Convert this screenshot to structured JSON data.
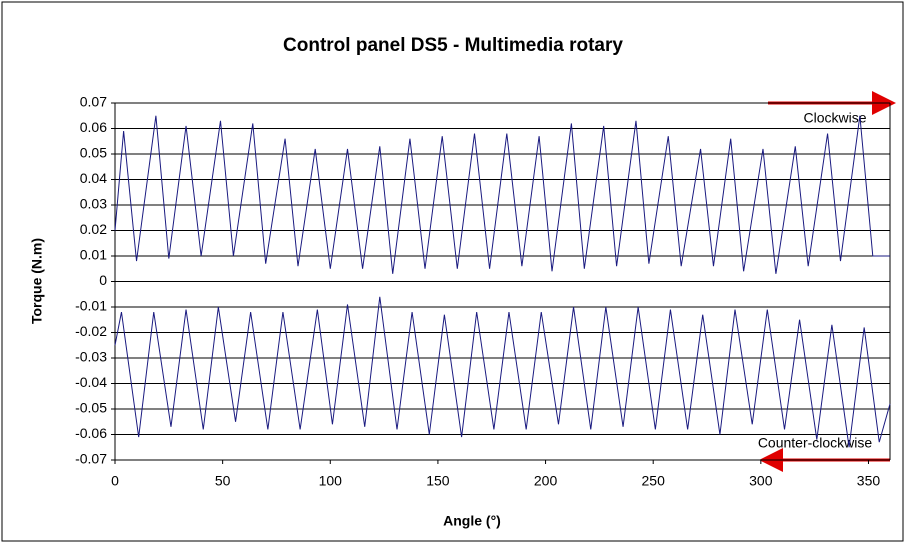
{
  "chart_data": {
    "type": "line",
    "title": "Control panel DS5 - Multimedia rotary",
    "x_label": "Angle (°)",
    "y_label": "Torque (N.m)",
    "annotations": [
      "Clockwise",
      "Counter-clockwise"
    ],
    "xlim": [
      0,
      360
    ],
    "xticks": [
      0,
      50,
      100,
      150,
      200,
      250,
      300,
      350
    ],
    "ylim": [
      -0.07,
      0.07
    ],
    "yticks": [
      0.07,
      0.06,
      0.05,
      0.04,
      0.03,
      0.02,
      0.01,
      0,
      -0.01,
      -0.02,
      -0.03,
      -0.04,
      -0.05,
      -0.06,
      -0.07
    ],
    "grid": true,
    "series": [
      {
        "color": "#1a1a80",
        "x": [
          0,
          4,
          10,
          19,
          25,
          33,
          40,
          49,
          55,
          64,
          70,
          79,
          85,
          93,
          100,
          108,
          115,
          123,
          129,
          137,
          144,
          152,
          159,
          167,
          174,
          182,
          189,
          197,
          203,
          212,
          218,
          227,
          233,
          242,
          248,
          257,
          263,
          272,
          278,
          286,
          292,
          301,
          307,
          316,
          322,
          331,
          337,
          346,
          352,
          360
        ],
        "values": [
          0.02,
          0.059,
          0.008,
          0.065,
          0.009,
          0.061,
          0.01,
          0.063,
          0.01,
          0.062,
          0.007,
          0.056,
          0.006,
          0.052,
          0.005,
          0.052,
          0.005,
          0.053,
          0.003,
          0.056,
          0.005,
          0.057,
          0.005,
          0.058,
          0.005,
          0.058,
          0.006,
          0.057,
          0.004,
          0.062,
          0.005,
          0.061,
          0.006,
          0.063,
          0.007,
          0.057,
          0.006,
          0.052,
          0.006,
          0.056,
          0.004,
          0.052,
          0.003,
          0.053,
          0.006,
          0.058,
          0.008,
          0.065,
          0.01,
          0.01
        ]
      },
      {
        "color": "#1a1a80",
        "x": [
          0,
          3,
          11,
          18,
          26,
          33,
          41,
          48,
          56,
          63,
          71,
          78,
          86,
          94,
          101,
          108,
          116,
          123,
          131,
          138,
          146,
          153,
          161,
          168,
          176,
          183,
          191,
          198,
          206,
          213,
          221,
          228,
          236,
          243,
          251,
          258,
          266,
          273,
          281,
          288,
          296,
          303,
          311,
          318,
          326,
          333,
          341,
          348,
          355,
          360
        ],
        "values": [
          -0.025,
          -0.012,
          -0.061,
          -0.012,
          -0.057,
          -0.011,
          -0.058,
          -0.01,
          -0.055,
          -0.012,
          -0.058,
          -0.012,
          -0.058,
          -0.011,
          -0.056,
          -0.009,
          -0.057,
          -0.006,
          -0.058,
          -0.012,
          -0.06,
          -0.013,
          -0.061,
          -0.012,
          -0.058,
          -0.012,
          -0.058,
          -0.012,
          -0.056,
          -0.01,
          -0.058,
          -0.01,
          -0.057,
          -0.01,
          -0.058,
          -0.011,
          -0.058,
          -0.013,
          -0.06,
          -0.011,
          -0.056,
          -0.011,
          -0.058,
          -0.015,
          -0.062,
          -0.017,
          -0.065,
          -0.018,
          -0.063,
          -0.048
        ]
      }
    ]
  }
}
